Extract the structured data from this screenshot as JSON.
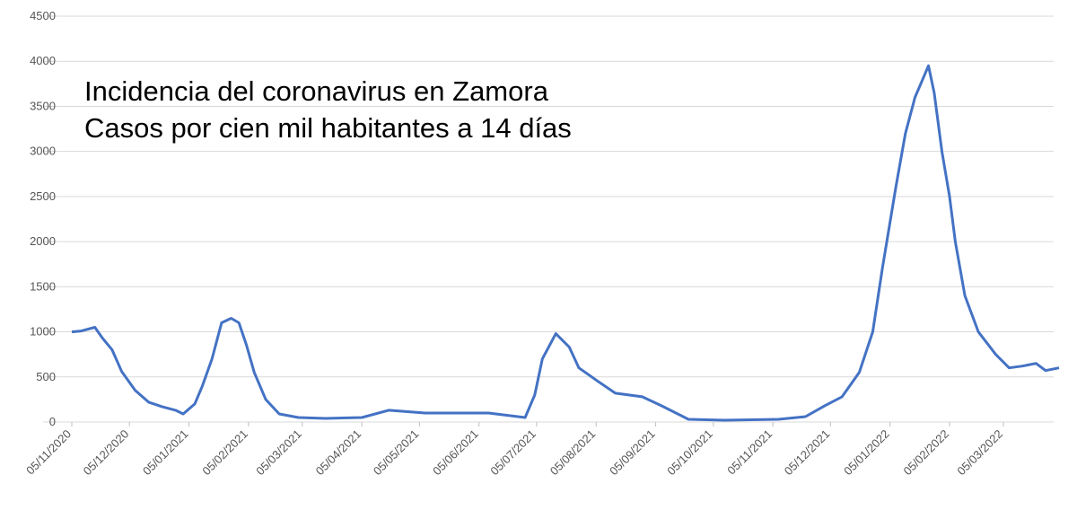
{
  "chart_data": {
    "type": "line",
    "title": "Incidencia del coronavirus en Zamora",
    "subtitle": "Casos por cien mil habitantes a 14 días",
    "x": [
      "05/11/2020",
      "10/11/2020",
      "17/11/2020",
      "21/11/2020",
      "26/11/2020",
      "01/12/2020",
      "08/12/2020",
      "15/12/2020",
      "22/12/2020",
      "29/12/2020",
      "02/01/2021",
      "08/01/2021",
      "12/01/2021",
      "17/01/2021",
      "22/01/2021",
      "27/01/2021",
      "31/01/2021",
      "04/02/2021",
      "08/02/2021",
      "14/02/2021",
      "21/02/2021",
      "03/03/2021",
      "17/03/2021",
      "05/04/2021",
      "19/04/2021",
      "08/05/2021",
      "27/05/2021",
      "10/06/2021",
      "29/06/2021",
      "04/07/2021",
      "08/07/2021",
      "15/07/2021",
      "22/07/2021",
      "27/07/2021",
      "06/08/2021",
      "15/08/2021",
      "29/08/2021",
      "08/09/2021",
      "22/09/2021",
      "11/10/2021",
      "08/11/2021",
      "22/11/2021",
      "02/12/2021",
      "11/12/2021",
      "20/12/2021",
      "27/12/2021",
      "01/01/2022",
      "08/01/2022",
      "13/01/2022",
      "18/01/2022",
      "22/01/2022",
      "25/01/2022",
      "28/01/2022",
      "01/02/2022",
      "05/02/2022",
      "08/02/2022",
      "13/02/2022",
      "20/02/2022",
      "01/03/2022",
      "08/03/2022",
      "15/03/2022",
      "22/03/2022",
      "27/03/2022",
      "03/04/2022"
    ],
    "values": [
      1000,
      1010,
      1050,
      930,
      800,
      560,
      350,
      220,
      170,
      130,
      90,
      200,
      400,
      700,
      1100,
      1150,
      1100,
      850,
      550,
      250,
      90,
      50,
      40,
      50,
      130,
      100,
      100,
      100,
      50,
      300,
      700,
      980,
      830,
      600,
      450,
      320,
      280,
      180,
      30,
      20,
      30,
      60,
      180,
      280,
      550,
      1000,
      1700,
      2600,
      3200,
      3600,
      3800,
      3950,
      3650,
      3000,
      2500,
      2000,
      1400,
      1000,
      750,
      600,
      620,
      650,
      570,
      600
    ],
    "color": "#4472c4",
    "xlim": [
      "05/11/2020",
      "03/04/2022"
    ],
    "xticks": [
      "05/11/2020",
      "05/12/2020",
      "05/01/2021",
      "05/02/2021",
      "05/03/2021",
      "05/04/2021",
      "05/05/2021",
      "05/06/2021",
      "05/07/2021",
      "05/08/2021",
      "05/09/2021",
      "05/10/2021",
      "05/11/2021",
      "05/12/2021",
      "05/01/2022",
      "05/02/2022",
      "05/03/2022"
    ],
    "ylim": [
      0,
      4500
    ],
    "yticks": [
      0,
      500,
      1000,
      1500,
      2000,
      2500,
      3000,
      3500,
      4000,
      4500
    ],
    "grid": true
  }
}
